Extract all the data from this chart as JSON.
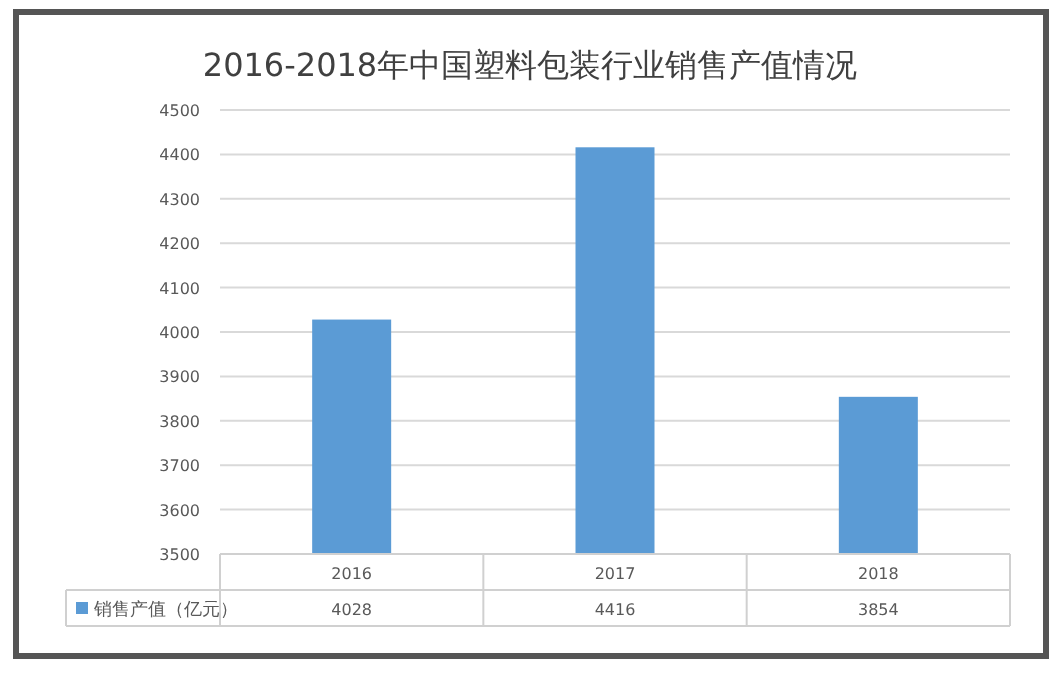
{
  "chart_data": {
    "type": "bar",
    "title": "2016-2018年中国塑料包装行业销售产值情况",
    "categories": [
      "2016",
      "2017",
      "2018"
    ],
    "series": [
      {
        "name": "销售产值（亿元）",
        "color": "#5b9bd5",
        "values": [
          4028,
          4416,
          3854
        ]
      }
    ],
    "ylim": [
      3500,
      4500
    ],
    "yticks": [
      3500,
      3600,
      3700,
      3800,
      3900,
      4000,
      4100,
      4200,
      4300,
      4400,
      4500
    ],
    "grid": "y",
    "legend": "bottom",
    "data_labels": true
  }
}
